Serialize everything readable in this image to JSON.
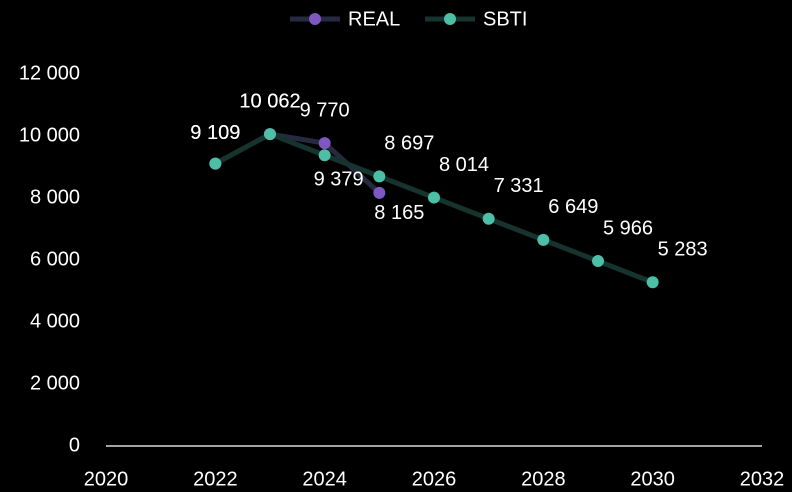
{
  "chart_data": {
    "type": "line",
    "x": [
      2022,
      2023,
      2024,
      2025,
      2026,
      2027,
      2028,
      2029,
      2030
    ],
    "series": [
      {
        "name": "REAL",
        "color": "#7e57c2",
        "line_color": "#262a40",
        "values": [
          9109,
          10062,
          9770,
          8165,
          null,
          null,
          null,
          null,
          null
        ],
        "value_labels": [
          "9 109",
          "10 062",
          "9 770",
          "8 165",
          null,
          null,
          null,
          null,
          null
        ]
      },
      {
        "name": "SBTI",
        "color": "#4cbfa6",
        "line_color": "#17332e",
        "values": [
          9109,
          10062,
          9379,
          8697,
          8014,
          7331,
          6649,
          5966,
          5283
        ],
        "value_labels": [
          "9 109",
          "10 062",
          "9 379",
          "8 697",
          "8 014",
          "7 331",
          "6 649",
          "5 966",
          "5 283"
        ]
      }
    ],
    "xlim": [
      2020,
      2032
    ],
    "xticks": [
      2020,
      2022,
      2024,
      2026,
      2028,
      2030,
      2032
    ],
    "ylim": [
      0,
      12000
    ],
    "yticks": [
      0,
      {
        "value": 2000,
        "label": "2 000"
      },
      {
        "value": 4000,
        "label": "4 000"
      },
      {
        "value": 6000,
        "label": "6 000"
      },
      {
        "value": 8000,
        "label": "8 000"
      },
      {
        "value": 10000,
        "label": "10 000"
      },
      {
        "value": 12000,
        "label": "12 000"
      }
    ],
    "grid": false,
    "legend": "top"
  }
}
